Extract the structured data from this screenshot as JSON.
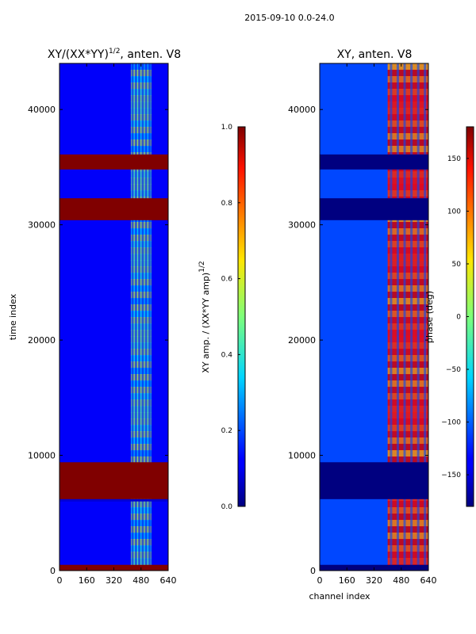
{
  "figure": {
    "suptitle": "2015-09-10 0.0-24.0"
  },
  "chart_data": [
    {
      "type": "heatmap",
      "title_prefix": "XY/(XX*YY)",
      "title_exponent": "1/2",
      "title_suffix": ", anten. V8",
      "xlabel": "",
      "ylabel": "time index",
      "x_range": [
        0,
        640
      ],
      "y_range": [
        0,
        44000
      ],
      "x_ticks": [
        0,
        160,
        320,
        480,
        640
      ],
      "y_ticks": [
        0,
        10000,
        20000,
        30000,
        40000
      ],
      "colorbar": {
        "label_prefix": "XY amp. / (XX*YY amp)",
        "label_exponent": "1/2",
        "range": [
          0.0,
          1.0
        ],
        "ticks": [
          "0.0",
          "0.2",
          "0.4",
          "0.6",
          "0.8",
          "1.0"
        ],
        "tick_values": [
          0.0,
          0.2,
          0.4,
          0.6,
          0.8,
          1.0
        ]
      },
      "bands": [
        {
          "from": 0,
          "to": 500,
          "value": 1.0
        },
        {
          "from": 6000,
          "to": 6200,
          "value": 0.08
        },
        {
          "from": 6200,
          "to": 9400,
          "value": 1.0
        },
        {
          "from": 30400,
          "to": 32300,
          "value": 1.0
        },
        {
          "from": 34800,
          "to": 36100,
          "value": 1.0
        }
      ],
      "active_channel_range": [
        420,
        540
      ],
      "active_value": 0.55,
      "background_value": 0.12
    },
    {
      "type": "heatmap",
      "title": "XY, anten. V8",
      "xlabel": "channel index",
      "ylabel": "",
      "x_range": [
        0,
        640
      ],
      "y_range": [
        0,
        44000
      ],
      "x_ticks": [
        0,
        160,
        320,
        480,
        640
      ],
      "y_ticks": [
        0,
        10000,
        20000,
        30000,
        40000
      ],
      "colorbar": {
        "label": "phase (deg)",
        "range": [
          -180,
          180
        ],
        "ticks": [
          "−150",
          "−100",
          "−50",
          "0",
          "50",
          "100",
          "150"
        ],
        "tick_values": [
          -150,
          -100,
          -50,
          0,
          50,
          100,
          150
        ]
      },
      "bands": [
        {
          "from": 0,
          "to": 500,
          "value": -180
        },
        {
          "from": 6200,
          "to": 9400,
          "value": -180
        },
        {
          "from": 30400,
          "to": 32300,
          "value": -180
        },
        {
          "from": 34800,
          "to": 36100,
          "value": -180
        }
      ],
      "active_channel_range": [
        400,
        640
      ],
      "active_value": 150,
      "background_value": -110
    }
  ],
  "colors": {
    "frame": "#000000",
    "low": "#00007f",
    "high": "#7f0000"
  }
}
